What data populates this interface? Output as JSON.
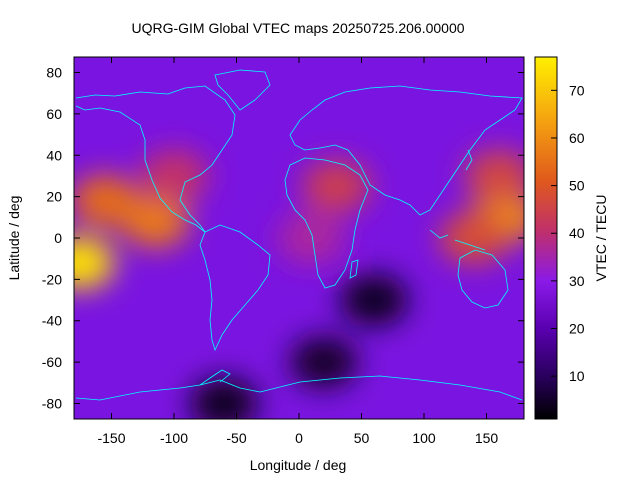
{
  "chart_data": {
    "type": "heatmap",
    "title": "UQRG-GIM Global VTEC maps 20250725.206.00000",
    "xlabel": "Longitude / deg",
    "ylabel": "Latitude / deg",
    "colorbar_label": "VTEC / TECU",
    "xlim": [
      -180,
      180
    ],
    "ylim": [
      -87.5,
      87.5
    ],
    "x_ticks": [
      -150,
      -100,
      -50,
      0,
      50,
      100,
      150
    ],
    "y_ticks": [
      -80,
      -60,
      -40,
      -20,
      0,
      20,
      40,
      60,
      80
    ],
    "colorbar_range": [
      1,
      77
    ],
    "colorbar_ticks": [
      10,
      20,
      30,
      40,
      50,
      60,
      70
    ],
    "colormap": [
      "#000000",
      "#2a005e",
      "#5a00b0",
      "#8a1ae8",
      "#c0306a",
      "#e05a1c",
      "#f4a010",
      "#fff000"
    ],
    "coastline_color": "#00ffff",
    "features": [
      {
        "lon": -175,
        "lat": -12,
        "value": 75
      },
      {
        "lon": -155,
        "lat": 18,
        "value": 58
      },
      {
        "lon": -115,
        "lat": 8,
        "value": 60
      },
      {
        "lon": -100,
        "lat": 30,
        "value": 45
      },
      {
        "lon": 30,
        "lat": 25,
        "value": 48
      },
      {
        "lon": 10,
        "lat": 0,
        "value": 40
      },
      {
        "lon": 165,
        "lat": 10,
        "value": 62
      },
      {
        "lon": 140,
        "lat": 0,
        "value": 52
      },
      {
        "lon": 160,
        "lat": 30,
        "value": 50
      },
      {
        "lon": 60,
        "lat": -30,
        "value": 5
      },
      {
        "lon": 20,
        "lat": -60,
        "value": 6
      },
      {
        "lon": -60,
        "lat": -80,
        "value": 4
      }
    ]
  }
}
